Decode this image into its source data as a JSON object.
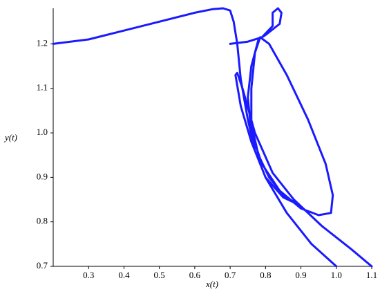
{
  "chart_data": {
    "type": "line",
    "x_label": "x(t)",
    "y_label": "y(t)",
    "xlim": [
      0.2,
      1.1
    ],
    "ylim": [
      0.7,
      1.28
    ],
    "xticks": [
      0.3,
      0.4,
      0.5,
      0.6,
      0.7,
      0.8,
      0.9,
      {
        "value": 1,
        "label": "1.0"
      },
      1.1
    ],
    "yticks": [
      0.7,
      0.8,
      0.9,
      {
        "value": 1,
        "label": "1.0"
      },
      1.1,
      1.2
    ],
    "series": [
      {
        "color": "#1a1aff",
        "x": [
          0.2,
          0.3,
          0.4,
          0.5,
          0.6,
          0.65,
          0.68,
          0.7,
          0.71,
          0.72,
          0.73,
          0.75,
          0.77,
          0.8,
          0.86,
          0.93,
          1.0,
          null,
          0.7,
          0.75,
          0.79,
          0.82,
          0.82,
          0.835,
          0.845,
          0.84,
          0.8,
          0.78,
          0.76,
          0.75,
          0.76,
          0.79,
          0.84,
          0.9,
          0.95,
          0.985,
          0.99,
          0.97,
          0.92,
          0.86,
          0.81,
          0.785,
          0.77,
          0.76,
          0.76,
          0.78,
          0.81,
          0.85,
          0.89,
          0.85,
          0.8,
          0.76,
          0.73,
          0.715,
          0.72,
          0.735,
          0.77,
          0.82,
          0.88,
          0.96,
          1.04,
          1.1
        ],
        "values": [
          1.2,
          1.21,
          1.23,
          1.25,
          1.27,
          1.278,
          1.28,
          1.275,
          1.25,
          1.2,
          1.12,
          1.03,
          0.96,
          0.9,
          0.82,
          0.75,
          0.7,
          null,
          1.2,
          1.205,
          1.215,
          1.24,
          1.27,
          1.28,
          1.27,
          1.245,
          1.22,
          1.21,
          1.15,
          1.08,
          1.0,
          0.93,
          0.87,
          0.83,
          0.815,
          0.82,
          0.86,
          0.93,
          1.03,
          1.13,
          1.2,
          1.215,
          1.18,
          1.1,
          1.02,
          0.95,
          0.9,
          0.86,
          0.84,
          0.855,
          0.9,
          0.98,
          1.06,
          1.13,
          1.135,
          1.1,
          1.0,
          0.91,
          0.85,
          0.79,
          0.74,
          0.7
        ]
      }
    ]
  }
}
